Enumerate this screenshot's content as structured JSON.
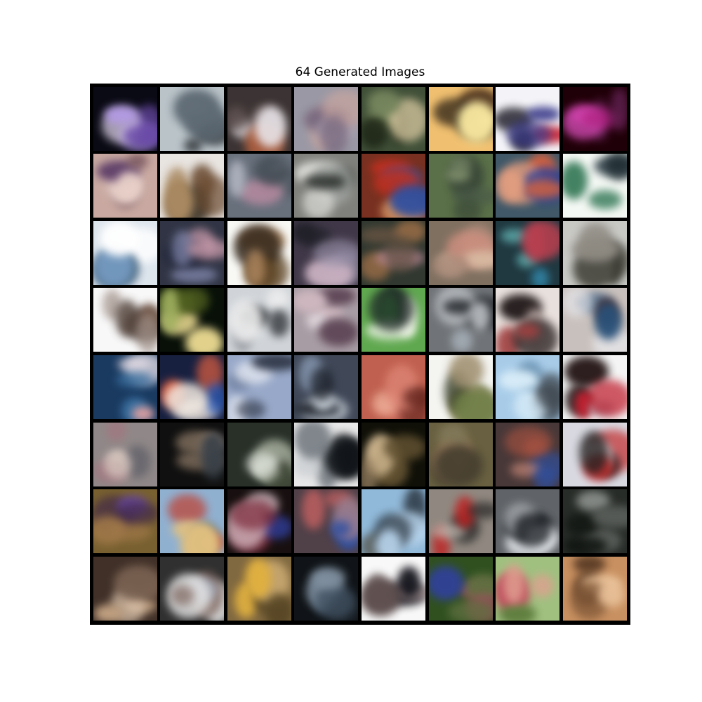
{
  "figure": {
    "title": "64 Generated Images"
  },
  "grid": {
    "rows": 8,
    "cols": 8,
    "background_color": "#000000",
    "tiles": [
      {
        "bg": "#0a0a14",
        "a": "#b49be6",
        "b": "#6a4aa8",
        "c": "#e8dcf4"
      },
      {
        "bg": "#b9c3c8",
        "a": "#1e2226",
        "b": "#5a6670",
        "c": "#d8e0e4"
      },
      {
        "bg": "#3c3434",
        "a": "#e8e4e8",
        "b": "#6a5a5a",
        "c": "#b06040"
      },
      {
        "bg": "#9a98a4",
        "a": "#c8a6a0",
        "b": "#7a6a80",
        "c": "#b4aab8"
      },
      {
        "bg": "#405038",
        "a": "#202818",
        "b": "#7a8a60",
        "c": "#d8c8a0"
      },
      {
        "bg": "#f0c070",
        "a": "#201810",
        "b": "#f8e8a0",
        "c": "#402818"
      },
      {
        "bg": "#f4f4f8",
        "a": "#1a1824",
        "b": "#3a3a8a",
        "c": "#c83040"
      },
      {
        "bg": "#200008",
        "a": "#b02080",
        "b": "#602050",
        "c": "#e050c0"
      },
      {
        "bg": "#c8a8a0",
        "a": "#7a5860",
        "b": "#e8d0c8",
        "c": "#503060"
      },
      {
        "bg": "#e8e4e0",
        "a": "#6a4a30",
        "b": "#a88860",
        "c": "#40382c"
      },
      {
        "bg": "#68707c",
        "a": "#b4b8c4",
        "b": "#404850",
        "c": "#c890a8"
      },
      {
        "bg": "#80807c",
        "a": "#e0e0dc",
        "b": "#282c28",
        "c": "#a0a4a0"
      },
      {
        "bg": "#783020",
        "a": "#c03020",
        "b": "#3050a0",
        "c": "#d09060"
      },
      {
        "bg": "#5a7048",
        "a": "#3a4838",
        "b": "#7a8a68",
        "c": "#485848"
      },
      {
        "bg": "#405868",
        "a": "#d06040",
        "b": "#e8a080",
        "c": "#2040a0"
      },
      {
        "bg": "#f4f8f4",
        "a": "#182428",
        "b": "#408060",
        "c": "#304048"
      },
      {
        "bg": "#dce4ec",
        "a": "#7aa0c8",
        "b": "#ffffff",
        "c": "#4a6880"
      },
      {
        "bg": "#303444",
        "a": "#8a90b8",
        "b": "#d0a0b0",
        "c": "#202438"
      },
      {
        "bg": "#f8f8f4",
        "a": "#5a4020",
        "b": "#b08860",
        "c": "#302418"
      },
      {
        "bg": "#403848",
        "a": "#9890a8",
        "b": "#202028",
        "c": "#c8b0c0"
      },
      {
        "bg": "#303830",
        "a": "#a07048",
        "b": "#605040",
        "c": "#c890a0"
      },
      {
        "bg": "#807060",
        "a": "#d8b8a0",
        "b": "#a88878",
        "c": "#d09080"
      },
      {
        "bg": "#203840",
        "a": "#60b0b0",
        "b": "#c04050",
        "c": "#3080a0"
      },
      {
        "bg": "#c8c8c4",
        "a": "#505048",
        "b": "#908c84",
        "c": "#282820"
      },
      {
        "bg": "#f8f8f8",
        "a": "#504038",
        "b": "#a09088",
        "c": "#705040"
      },
      {
        "bg": "#081008",
        "a": "#e8d890",
        "b": "#506020",
        "c": "#a0b060"
      },
      {
        "bg": "#d0d4d8",
        "a": "#303438",
        "b": "#f0f0f0",
        "c": "#787c84"
      },
      {
        "bg": "#a89ca4",
        "a": "#d0b8c0",
        "b": "#604858",
        "c": "#e8e0e4"
      },
      {
        "bg": "#60a850",
        "a": "#f0f4e8",
        "b": "#202828",
        "c": "#40a040"
      },
      {
        "bg": "#707478",
        "a": "#303438",
        "b": "#c8ccd0",
        "c": "#a0a8b0"
      },
      {
        "bg": "#e8e0dc",
        "a": "#282020",
        "b": "#a04040",
        "c": "#c8b4b0"
      },
      {
        "bg": "#c8c0bc",
        "a": "#285078",
        "b": "#e8e8ec",
        "c": "#402020"
      },
      {
        "bg": "#1a3a60",
        "a": "#e8e0e8",
        "b": "#3a70a0",
        "c": "#e0a0a0"
      },
      {
        "bg": "#182040",
        "a": "#e06040",
        "b": "#f0e8e0",
        "c": "#3060c0"
      },
      {
        "bg": "#98a8c8",
        "a": "#e8ecf4",
        "b": "#303848",
        "c": "#7080a0"
      },
      {
        "bg": "#404858",
        "a": "#d0d8e0",
        "b": "#181c24",
        "c": "#8090a8"
      },
      {
        "bg": "#c06050",
        "a": "#e08878",
        "b": "#682820",
        "c": "#f0b8a0"
      },
      {
        "bg": "#f4f4f0",
        "a": "#708048",
        "b": "#a09070",
        "c": "#303820"
      },
      {
        "bg": "#a8cce8",
        "a": "#404850",
        "b": "#d8ecf8",
        "c": "#6890b0"
      },
      {
        "bg": "#f4f4f4",
        "a": "#180808",
        "b": "#c02030",
        "c": "#a8a8b0"
      },
      {
        "bg": "#908888",
        "a": "#d8c8c0",
        "b": "#a07880",
        "c": "#606068"
      },
      {
        "bg": "#101010",
        "a": "#786858",
        "b": "#384048",
        "c": "#c0a898"
      },
      {
        "bg": "#283028",
        "a": "#a0a898",
        "b": "#e0e4dc",
        "c": "#404838"
      },
      {
        "bg": "#e8e8e8",
        "a": "#101418",
        "b": "#606870",
        "c": "#c8ccd0"
      },
      {
        "bg": "#101008",
        "a": "#a08868",
        "b": "#605030",
        "c": "#d0b890"
      },
      {
        "bg": "#686040",
        "a": "#a08060",
        "b": "#484030",
        "c": "#807858"
      },
      {
        "bg": "#483838",
        "a": "#a05040",
        "b": "#3050a0",
        "c": "#c88878"
      },
      {
        "bg": "#d8d8e0",
        "a": "#c02020",
        "b": "#202020",
        "c": "#f0f0f4"
      },
      {
        "bg": "#786030",
        "a": "#402848",
        "b": "#a07848",
        "c": "#6848a0"
      },
      {
        "bg": "#90b0d0",
        "a": "#c04030",
        "b": "#e0c080",
        "c": "#304050"
      },
      {
        "bg": "#181010",
        "a": "#e8d0d8",
        "b": "#803040",
        "c": "#3040a0"
      },
      {
        "bg": "#504048",
        "a": "#c06060",
        "b": "#3050a0",
        "c": "#a08090"
      },
      {
        "bg": "#90b8d8",
        "a": "#202830",
        "b": "#b8d4ec",
        "c": "#606868"
      },
      {
        "bg": "#908880",
        "a": "#c02020",
        "b": "#202020",
        "c": "#c0b8b0"
      },
      {
        "bg": "#606468",
        "a": "#e8ecf0",
        "b": "#181c20",
        "c": "#a0a4a8"
      },
      {
        "bg": "#282c28",
        "a": "#606460",
        "b": "#101410",
        "c": "#888c88"
      },
      {
        "bg": "#403028",
        "a": "#c0a080",
        "b": "#786050",
        "c": "#e0c8b0"
      },
      {
        "bg": "#303030",
        "a": "#e8e8e8",
        "b": "#806860",
        "c": "#a0a8b8"
      },
      {
        "bg": "#806840",
        "a": "#e0b040",
        "b": "#504020",
        "c": "#c8a870"
      },
      {
        "bg": "#101418",
        "a": "#405060",
        "b": "#8090a0",
        "c": "#202830"
      },
      {
        "bg": "#f8f8f8",
        "a": "#181820",
        "b": "#605050",
        "c": "#a09090"
      },
      {
        "bg": "#305020",
        "a": "#a05060",
        "b": "#607040",
        "c": "#3040a0"
      },
      {
        "bg": "#a0c080",
        "a": "#c05060",
        "b": "#e0a090",
        "c": "#608040"
      },
      {
        "bg": "#c89060",
        "a": "#402818",
        "b": "#e8c098",
        "c": "#805838"
      }
    ]
  }
}
